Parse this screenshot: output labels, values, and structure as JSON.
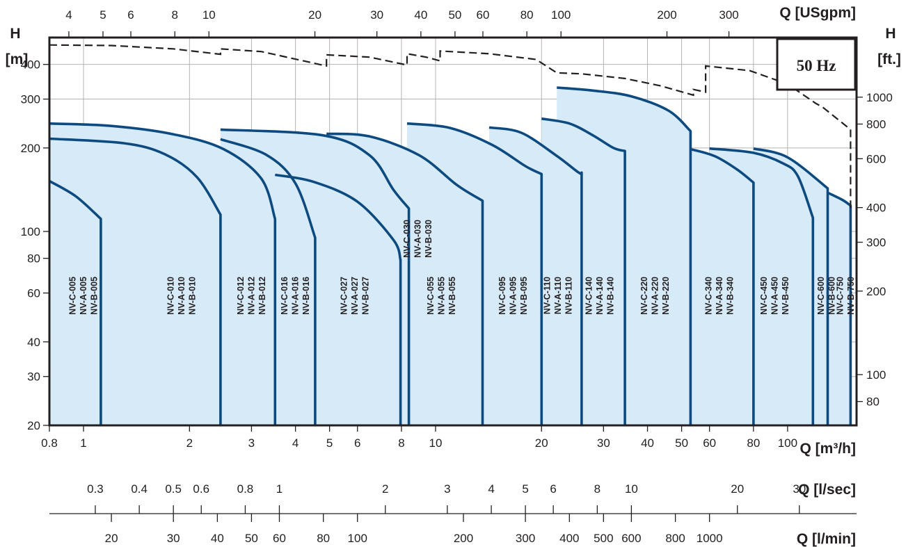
{
  "chart_data": {
    "type": "area",
    "scale": "log-log",
    "colors": {
      "fill": "#d6eaf8",
      "curve": "#0d4a80",
      "grid": "#b3b3b3",
      "text": "#231f20"
    },
    "frequency_label": "50 Hz",
    "axes": {
      "x_main": {
        "label": "Q [m³/h]",
        "range": [
          0.8,
          100
        ],
        "ticks": [
          "0.8",
          "1",
          "2",
          "3",
          "4",
          "5",
          "6",
          "8",
          "10",
          "20",
          "30",
          "40",
          "50",
          "60",
          "80",
          "100"
        ],
        "values": [
          0.8,
          1,
          2,
          3,
          4,
          5,
          6,
          8,
          10,
          20,
          30,
          40,
          50,
          60,
          80,
          100
        ]
      },
      "x_usgpm": {
        "label": "Q [USgpm]",
        "ticks": [
          "4",
          "5",
          "6",
          "8",
          "10",
          "20",
          "30",
          "40",
          "50",
          "60",
          "80",
          "100",
          "200",
          "300"
        ],
        "values": [
          4,
          5,
          6,
          8,
          10,
          20,
          30,
          40,
          50,
          60,
          80,
          100,
          200,
          300
        ]
      },
      "x_lsec": {
        "label": "Q [l/sec]",
        "ticks": [
          "0.3",
          "0.4",
          "0.5",
          "0.6",
          "0.8",
          "1",
          "2",
          "3",
          "4",
          "5",
          "6",
          "8",
          "10",
          "20",
          "30"
        ],
        "values": [
          0.3,
          0.4,
          0.5,
          0.6,
          0.8,
          1,
          2,
          3,
          4,
          5,
          6,
          8,
          10,
          20,
          30
        ]
      },
      "x_lmin": {
        "label": "Q [l/min]",
        "ticks": [
          "20",
          "30",
          "40",
          "50",
          "60",
          "80",
          "100",
          "200",
          "300",
          "400",
          "500",
          "600",
          "800",
          "1000"
        ],
        "values": [
          20,
          30,
          40,
          50,
          60,
          80,
          100,
          200,
          300,
          400,
          500,
          600,
          800,
          1000
        ]
      },
      "y_m": {
        "label_top": "H",
        "label_unit": "[m]",
        "range": [
          20,
          500
        ],
        "ticks": [
          "20",
          "30",
          "40",
          "60",
          "80",
          "100",
          "200",
          "300",
          "400"
        ],
        "values": [
          20,
          30,
          40,
          60,
          80,
          100,
          200,
          300,
          400
        ]
      },
      "y_ft": {
        "label_top": "H",
        "label_unit": "[ft.]",
        "ticks": [
          "80",
          "100",
          "200",
          "300",
          "400",
          "600",
          "800",
          "1000"
        ],
        "values": [
          80,
          100,
          200,
          300,
          400,
          600,
          800,
          1000
        ]
      }
    },
    "envelope_dashed": [
      [
        0.8,
        470
      ],
      [
        1.2,
        468
      ],
      [
        1.8,
        455
      ],
      [
        2.45,
        435
      ],
      [
        2.45,
        455
      ],
      [
        3.2,
        445
      ],
      [
        4.9,
        395
      ],
      [
        4.9,
        433
      ],
      [
        6.5,
        425
      ],
      [
        8.3,
        398
      ],
      [
        8.3,
        437
      ],
      [
        9.4,
        425
      ],
      [
        10.3,
        412
      ],
      [
        10.3,
        447
      ],
      [
        14.2,
        437
      ],
      [
        19.3,
        417
      ],
      [
        22.1,
        373
      ],
      [
        26,
        370
      ],
      [
        34.5,
        356
      ],
      [
        43.5,
        335
      ],
      [
        54,
        310
      ],
      [
        54,
        325
      ],
      [
        58.5,
        318
      ],
      [
        58.5,
        395
      ],
      [
        78,
        380
      ],
      [
        100,
        340
      ],
      [
        120,
        290
      ],
      [
        126,
        280
      ],
      [
        151,
        233
      ],
      [
        151,
        118
      ]
    ],
    "pumps": [
      {
        "labels": [
          "NV-C-005",
          "NV-A-005",
          "NV-B-005"
        ],
        "label_q": 1.0,
        "top": [
          [
            0.8,
            152
          ],
          [
            0.95,
            134
          ],
          [
            1.12,
            111
          ]
        ],
        "right_q": 1.12
      },
      {
        "labels": [
          "NV-C-010",
          "NV-A-010",
          "NV-B-010"
        ],
        "label_q": 1.9,
        "top": [
          [
            0.8,
            216
          ],
          [
            1.3,
            208
          ],
          [
            1.7,
            190
          ],
          [
            2.1,
            157
          ],
          [
            2.45,
            115
          ]
        ],
        "right_q": 2.45
      },
      {
        "labels": [
          "NV-C-012",
          "NV-A-012",
          "NV-B-012"
        ],
        "label_q": 3.0,
        "top": [
          [
            0.8,
            245
          ],
          [
            1.2,
            240
          ],
          [
            1.8,
            224
          ],
          [
            2.5,
            198
          ],
          [
            3.2,
            155
          ],
          [
            3.5,
            111
          ]
        ],
        "right_q": 3.5
      },
      {
        "labels": [
          "NV-C-016",
          "NV-A-016",
          "NV-B-016"
        ],
        "label_q": 4.0,
        "top": [
          [
            2.45,
            215
          ],
          [
            3.3,
            189
          ],
          [
            4,
            149
          ],
          [
            4.55,
            95
          ]
        ],
        "right_q": 4.55
      },
      {
        "labels": [
          "NV-C-027",
          "NV-A-027",
          "NV-B-027"
        ],
        "label_q": 5.9,
        "top": [
          [
            3.5,
            160
          ],
          [
            4.5,
            151
          ],
          [
            6,
            128
          ],
          [
            7.6,
            93
          ],
          [
            7.95,
            79
          ]
        ],
        "right_q": 7.95
      },
      {
        "labels": [
          "NV-C-030",
          "NV-A-030",
          "NV-B-030"
        ],
        "label_q": 8.9,
        "label_pos": "upper",
        "top": [
          [
            2.45,
            233
          ],
          [
            4.8,
            222
          ],
          [
            6.5,
            188
          ],
          [
            7.6,
            141
          ],
          [
            8.4,
            121
          ]
        ],
        "right_q": 8.4
      },
      {
        "labels": [
          "NV-C-055",
          "NV-A-055",
          "NV-B-055"
        ],
        "label_q": 10.4,
        "top": [
          [
            4.9,
            225
          ],
          [
            6.5,
            220
          ],
          [
            9,
            188
          ],
          [
            11.5,
            147
          ],
          [
            13.6,
            129
          ]
        ],
        "right_q": 13.6
      },
      {
        "labels": [
          "NV-C-095",
          "NV-A-095",
          "NV-B-095"
        ],
        "label_q": 16.6,
        "top": [
          [
            8.3,
            245
          ],
          [
            11,
            236
          ],
          [
            14.5,
            205
          ],
          [
            18,
            172
          ],
          [
            20,
            161
          ]
        ],
        "right_q": 20
      },
      {
        "labels": [
          "NV-C-110",
          "NV-A-110",
          "NV-B-110"
        ],
        "label_q": 22.3,
        "top": [
          [
            14.2,
            237
          ],
          [
            17.5,
            227
          ],
          [
            22,
            188
          ],
          [
            25.5,
            163
          ],
          [
            26,
            163
          ]
        ],
        "right_q": 26
      },
      {
        "labels": [
          "NV-C-140",
          "NV-A-140",
          "NV-B-140"
        ],
        "label_q": 29.3,
        "top": [
          [
            20,
            255
          ],
          [
            24,
            245
          ],
          [
            28,
            222
          ],
          [
            32,
            200
          ],
          [
            34.5,
            195
          ]
        ],
        "right_q": 34.5
      },
      {
        "labels": [
          "NV-C-220",
          "NV-A-220",
          "NV-B-220"
        ],
        "label_q": 42,
        "top": [
          [
            22.1,
            330
          ],
          [
            28,
            322
          ],
          [
            36,
            307
          ],
          [
            46,
            272
          ],
          [
            53,
            230
          ]
        ],
        "right_q": 53
      },
      {
        "labels": [
          "NV-C-340",
          "NV-A-340",
          "NV-B-340"
        ],
        "label_q": 64,
        "top": [
          [
            53,
            198
          ],
          [
            62,
            187
          ],
          [
            72,
            167
          ],
          [
            80,
            150
          ]
        ],
        "right_q": 80
      },
      {
        "labels": [
          "NV-C-450",
          "NV-A-450",
          "NV-B-450"
        ],
        "label_q": 92,
        "top": [
          [
            60,
            199
          ],
          [
            80,
            192
          ],
          [
            97,
            176
          ],
          [
            107,
            158
          ],
          [
            118,
            112
          ]
        ],
        "right_q": 118
      },
      {
        "labels": [
          "NV-C-600",
          "NV-B-600"
        ],
        "label_q": 129,
        "top": [
          [
            80,
            199
          ],
          [
            100,
            185
          ],
          [
            130,
            143
          ]
        ],
        "right_q": 130
      },
      {
        "labels": [
          "NV-C-750",
          "NV-B-750"
        ],
        "label_q": 146,
        "top": [
          [
            130,
            138
          ],
          [
            143,
            130
          ],
          [
            151,
            124
          ]
        ],
        "right_q": 151
      }
    ]
  }
}
